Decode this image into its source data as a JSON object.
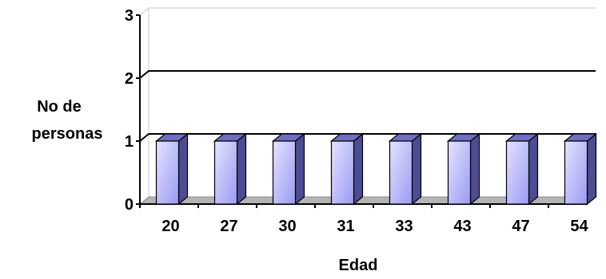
{
  "chart_data": {
    "type": "bar",
    "categories": [
      "20",
      "27",
      "30",
      "31",
      "33",
      "43",
      "47",
      "54"
    ],
    "values": [
      1,
      1,
      1,
      1,
      1,
      1,
      1,
      1
    ],
    "xlabel": "Edad",
    "ylabel_line1": "No de",
    "ylabel_line2": "personas",
    "ylim": [
      0,
      3
    ],
    "yticks": [
      "0",
      "1",
      "2",
      "3"
    ],
    "grid": true,
    "style": "3d",
    "colors": {
      "bar_front_top": "#e4e4ff",
      "bar_front_bottom": "#9a9af2",
      "bar_side": "#4c4c94",
      "bar_top": "#6e6ec4",
      "floor": "#b4b4b4",
      "gridline": "#000000"
    }
  }
}
